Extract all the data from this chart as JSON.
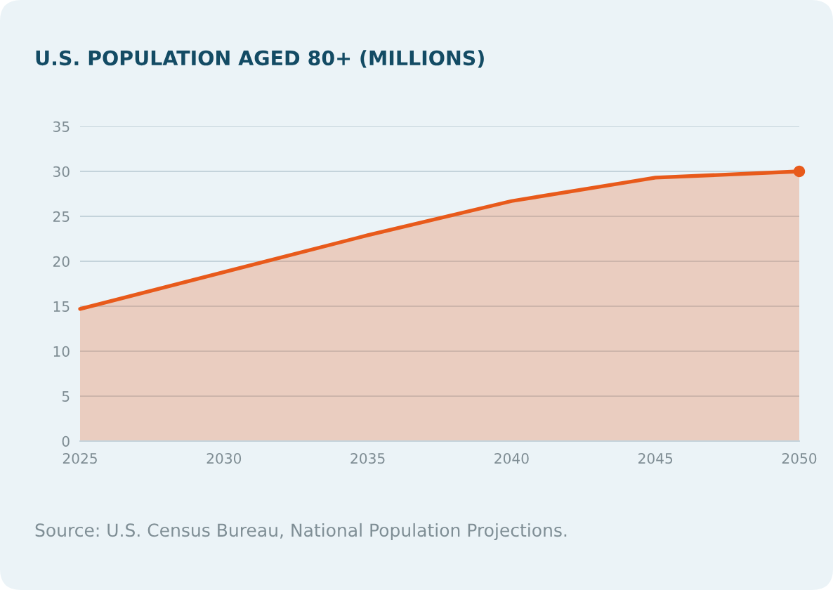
{
  "chart_data": {
    "type": "area",
    "title": "U.S. POPULATION AGED 80+ (MILLIONS)",
    "annotations": [
      "Source: U.S. Census Bureau, National Population Projections."
    ],
    "x": [
      2025,
      2030,
      2035,
      2040,
      2045,
      2050
    ],
    "series": [
      {
        "color": "#e85a1b",
        "values": [
          14.7,
          18.8,
          22.9,
          26.7,
          29.3,
          30.0
        ]
      },
      {
        "type": "scatter",
        "color": "#e85a1b",
        "marker": "circle",
        "x": [
          2050
        ],
        "values": [
          30.0
        ]
      }
    ],
    "xlim": [
      2025,
      2050
    ],
    "xticks": [
      2025,
      2030,
      2035,
      2040,
      2045,
      2050
    ],
    "ylim": [
      0,
      35
    ],
    "yticks": [
      0,
      5,
      10,
      15,
      20,
      25,
      30,
      35
    ],
    "grid": "y"
  }
}
